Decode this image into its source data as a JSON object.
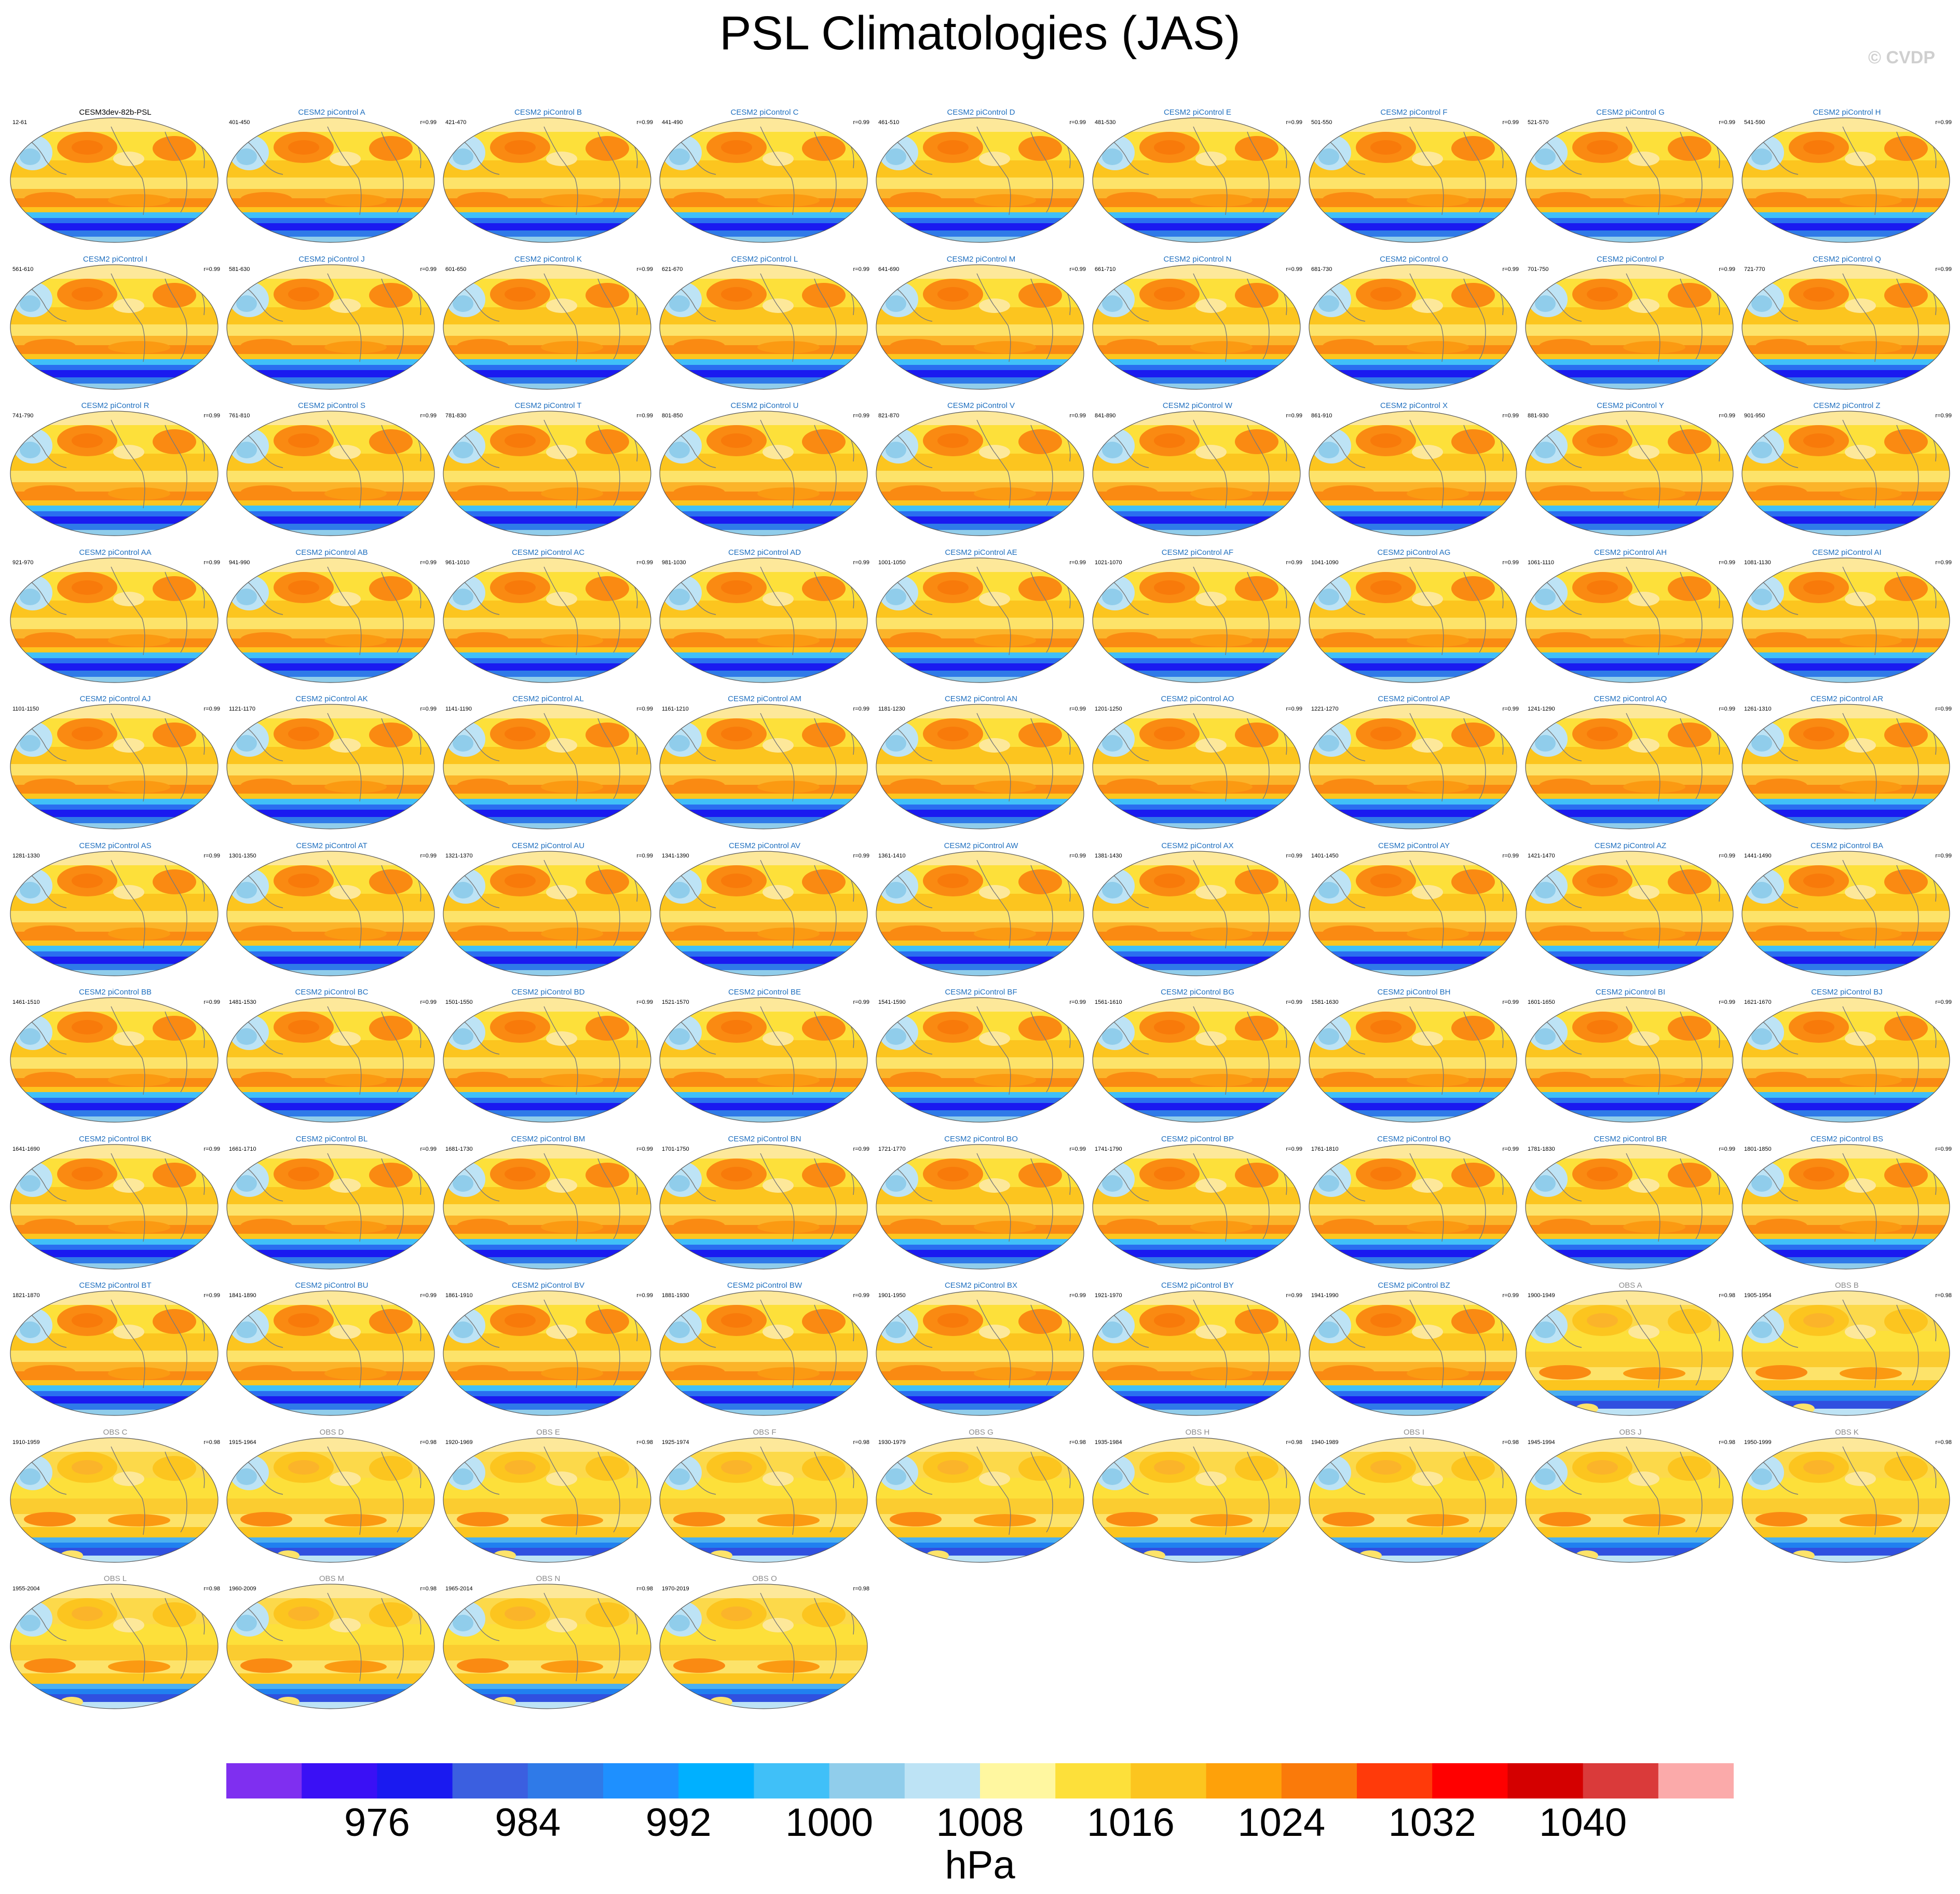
{
  "title": "PSL Climatologies (JAS)",
  "watermark": "© CVDP",
  "panels": [
    {
      "title": "CESM3dev-82b-PSL",
      "years": "12-61",
      "corr": "",
      "kind": "ref"
    },
    {
      "title": "CESM2 piControl A",
      "years": "401-450",
      "corr": "r=0.99",
      "kind": "model"
    },
    {
      "title": "CESM2 piControl B",
      "years": "421-470",
      "corr": "r=0.99",
      "kind": "model"
    },
    {
      "title": "CESM2 piControl C",
      "years": "441-490",
      "corr": "r=0.99",
      "kind": "model"
    },
    {
      "title": "CESM2 piControl D",
      "years": "461-510",
      "corr": "r=0.99",
      "kind": "model"
    },
    {
      "title": "CESM2 piControl E",
      "years": "481-530",
      "corr": "r=0.99",
      "kind": "model"
    },
    {
      "title": "CESM2 piControl F",
      "years": "501-550",
      "corr": "r=0.99",
      "kind": "model"
    },
    {
      "title": "CESM2 piControl G",
      "years": "521-570",
      "corr": "r=0.99",
      "kind": "model"
    },
    {
      "title": "CESM2 piControl H",
      "years": "541-590",
      "corr": "r=0.99",
      "kind": "model"
    },
    {
      "title": "CESM2 piControl I",
      "years": "561-610",
      "corr": "r=0.99",
      "kind": "model"
    },
    {
      "title": "CESM2 piControl J",
      "years": "581-630",
      "corr": "r=0.99",
      "kind": "model"
    },
    {
      "title": "CESM2 piControl K",
      "years": "601-650",
      "corr": "r=0.99",
      "kind": "model"
    },
    {
      "title": "CESM2 piControl L",
      "years": "621-670",
      "corr": "r=0.99",
      "kind": "model"
    },
    {
      "title": "CESM2 piControl M",
      "years": "641-690",
      "corr": "r=0.99",
      "kind": "model"
    },
    {
      "title": "CESM2 piControl N",
      "years": "661-710",
      "corr": "r=0.99",
      "kind": "model"
    },
    {
      "title": "CESM2 piControl O",
      "years": "681-730",
      "corr": "r=0.99",
      "kind": "model"
    },
    {
      "title": "CESM2 piControl P",
      "years": "701-750",
      "corr": "r=0.99",
      "kind": "model"
    },
    {
      "title": "CESM2 piControl Q",
      "years": "721-770",
      "corr": "r=0.99",
      "kind": "model"
    },
    {
      "title": "CESM2 piControl R",
      "years": "741-790",
      "corr": "r=0.99",
      "kind": "model"
    },
    {
      "title": "CESM2 piControl S",
      "years": "761-810",
      "corr": "r=0.99",
      "kind": "model"
    },
    {
      "title": "CESM2 piControl T",
      "years": "781-830",
      "corr": "r=0.99",
      "kind": "model"
    },
    {
      "title": "CESM2 piControl U",
      "years": "801-850",
      "corr": "r=0.99",
      "kind": "model"
    },
    {
      "title": "CESM2 piControl V",
      "years": "821-870",
      "corr": "r=0.99",
      "kind": "model"
    },
    {
      "title": "CESM2 piControl W",
      "years": "841-890",
      "corr": "r=0.99",
      "kind": "model"
    },
    {
      "title": "CESM2 piControl X",
      "years": "861-910",
      "corr": "r=0.99",
      "kind": "model"
    },
    {
      "title": "CESM2 piControl Y",
      "years": "881-930",
      "corr": "r=0.99",
      "kind": "model"
    },
    {
      "title": "CESM2 piControl Z",
      "years": "901-950",
      "corr": "r=0.99",
      "kind": "model"
    },
    {
      "title": "CESM2 piControl AA",
      "years": "921-970",
      "corr": "r=0.99",
      "kind": "model"
    },
    {
      "title": "CESM2 piControl AB",
      "years": "941-990",
      "corr": "r=0.99",
      "kind": "model"
    },
    {
      "title": "CESM2 piControl AC",
      "years": "961-1010",
      "corr": "r=0.99",
      "kind": "model"
    },
    {
      "title": "CESM2 piControl AD",
      "years": "981-1030",
      "corr": "r=0.99",
      "kind": "model"
    },
    {
      "title": "CESM2 piControl AE",
      "years": "1001-1050",
      "corr": "r=0.99",
      "kind": "model"
    },
    {
      "title": "CESM2 piControl AF",
      "years": "1021-1070",
      "corr": "r=0.99",
      "kind": "model"
    },
    {
      "title": "CESM2 piControl AG",
      "years": "1041-1090",
      "corr": "r=0.99",
      "kind": "model"
    },
    {
      "title": "CESM2 piControl AH",
      "years": "1061-1110",
      "corr": "r=0.99",
      "kind": "model"
    },
    {
      "title": "CESM2 piControl AI",
      "years": "1081-1130",
      "corr": "r=0.99",
      "kind": "model"
    },
    {
      "title": "CESM2 piControl AJ",
      "years": "1101-1150",
      "corr": "r=0.99",
      "kind": "model"
    },
    {
      "title": "CESM2 piControl AK",
      "years": "1121-1170",
      "corr": "r=0.99",
      "kind": "model"
    },
    {
      "title": "CESM2 piControl AL",
      "years": "1141-1190",
      "corr": "r=0.99",
      "kind": "model"
    },
    {
      "title": "CESM2 piControl AM",
      "years": "1161-1210",
      "corr": "r=0.99",
      "kind": "model"
    },
    {
      "title": "CESM2 piControl AN",
      "years": "1181-1230",
      "corr": "r=0.99",
      "kind": "model"
    },
    {
      "title": "CESM2 piControl AO",
      "years": "1201-1250",
      "corr": "r=0.99",
      "kind": "model"
    },
    {
      "title": "CESM2 piControl AP",
      "years": "1221-1270",
      "corr": "r=0.99",
      "kind": "model"
    },
    {
      "title": "CESM2 piControl AQ",
      "years": "1241-1290",
      "corr": "r=0.99",
      "kind": "model"
    },
    {
      "title": "CESM2 piControl AR",
      "years": "1261-1310",
      "corr": "r=0.99",
      "kind": "model"
    },
    {
      "title": "CESM2 piControl AS",
      "years": "1281-1330",
      "corr": "r=0.99",
      "kind": "model"
    },
    {
      "title": "CESM2 piControl AT",
      "years": "1301-1350",
      "corr": "r=0.99",
      "kind": "model"
    },
    {
      "title": "CESM2 piControl AU",
      "years": "1321-1370",
      "corr": "r=0.99",
      "kind": "model"
    },
    {
      "title": "CESM2 piControl AV",
      "years": "1341-1390",
      "corr": "r=0.99",
      "kind": "model"
    },
    {
      "title": "CESM2 piControl AW",
      "years": "1361-1410",
      "corr": "r=0.99",
      "kind": "model"
    },
    {
      "title": "CESM2 piControl AX",
      "years": "1381-1430",
      "corr": "r=0.99",
      "kind": "model"
    },
    {
      "title": "CESM2 piControl AY",
      "years": "1401-1450",
      "corr": "r=0.99",
      "kind": "model"
    },
    {
      "title": "CESM2 piControl AZ",
      "years": "1421-1470",
      "corr": "r=0.99",
      "kind": "model"
    },
    {
      "title": "CESM2 piControl BA",
      "years": "1441-1490",
      "corr": "r=0.99",
      "kind": "model"
    },
    {
      "title": "CESM2 piControl BB",
      "years": "1461-1510",
      "corr": "r=0.99",
      "kind": "model"
    },
    {
      "title": "CESM2 piControl BC",
      "years": "1481-1530",
      "corr": "r=0.99",
      "kind": "model"
    },
    {
      "title": "CESM2 piControl BD",
      "years": "1501-1550",
      "corr": "r=0.99",
      "kind": "model"
    },
    {
      "title": "CESM2 piControl BE",
      "years": "1521-1570",
      "corr": "r=0.99",
      "kind": "model"
    },
    {
      "title": "CESM2 piControl BF",
      "years": "1541-1590",
      "corr": "r=0.99",
      "kind": "model"
    },
    {
      "title": "CESM2 piControl BG",
      "years": "1561-1610",
      "corr": "r=0.99",
      "kind": "model"
    },
    {
      "title": "CESM2 piControl BH",
      "years": "1581-1630",
      "corr": "r=0.99",
      "kind": "model"
    },
    {
      "title": "CESM2 piControl BI",
      "years": "1601-1650",
      "corr": "r=0.99",
      "kind": "model"
    },
    {
      "title": "CESM2 piControl BJ",
      "years": "1621-1670",
      "corr": "r=0.99",
      "kind": "model"
    },
    {
      "title": "CESM2 piControl BK",
      "years": "1641-1690",
      "corr": "r=0.99",
      "kind": "model"
    },
    {
      "title": "CESM2 piControl BL",
      "years": "1661-1710",
      "corr": "r=0.99",
      "kind": "model"
    },
    {
      "title": "CESM2 piControl BM",
      "years": "1681-1730",
      "corr": "r=0.99",
      "kind": "model"
    },
    {
      "title": "CESM2 piControl BN",
      "years": "1701-1750",
      "corr": "r=0.99",
      "kind": "model"
    },
    {
      "title": "CESM2 piControl BO",
      "years": "1721-1770",
      "corr": "r=0.99",
      "kind": "model"
    },
    {
      "title": "CESM2 piControl BP",
      "years": "1741-1790",
      "corr": "r=0.99",
      "kind": "model"
    },
    {
      "title": "CESM2 piControl BQ",
      "years": "1761-1810",
      "corr": "r=0.99",
      "kind": "model"
    },
    {
      "title": "CESM2 piControl BR",
      "years": "1781-1830",
      "corr": "r=0.99",
      "kind": "model"
    },
    {
      "title": "CESM2 piControl BS",
      "years": "1801-1850",
      "corr": "r=0.99",
      "kind": "model"
    },
    {
      "title": "CESM2 piControl BT",
      "years": "1821-1870",
      "corr": "r=0.99",
      "kind": "model"
    },
    {
      "title": "CESM2 piControl BU",
      "years": "1841-1890",
      "corr": "r=0.99",
      "kind": "model"
    },
    {
      "title": "CESM2 piControl BV",
      "years": "1861-1910",
      "corr": "r=0.99",
      "kind": "model"
    },
    {
      "title": "CESM2 piControl BW",
      "years": "1881-1930",
      "corr": "r=0.99",
      "kind": "model"
    },
    {
      "title": "CESM2 piControl BX",
      "years": "1901-1950",
      "corr": "r=0.99",
      "kind": "model"
    },
    {
      "title": "CESM2 piControl BY",
      "years": "1921-1970",
      "corr": "r=0.99",
      "kind": "model"
    },
    {
      "title": "CESM2 piControl BZ",
      "years": "1941-1990",
      "corr": "r=0.99",
      "kind": "model"
    },
    {
      "title": "OBS A",
      "years": "1900-1949",
      "corr": "r=0.98",
      "kind": "obs"
    },
    {
      "title": "OBS B",
      "years": "1905-1954",
      "corr": "r=0.98",
      "kind": "obs"
    },
    {
      "title": "OBS C",
      "years": "1910-1959",
      "corr": "r=0.98",
      "kind": "obs"
    },
    {
      "title": "OBS D",
      "years": "1915-1964",
      "corr": "r=0.98",
      "kind": "obs"
    },
    {
      "title": "OBS E",
      "years": "1920-1969",
      "corr": "r=0.98",
      "kind": "obs"
    },
    {
      "title": "OBS F",
      "years": "1925-1974",
      "corr": "r=0.98",
      "kind": "obs"
    },
    {
      "title": "OBS G",
      "years": "1930-1979",
      "corr": "r=0.98",
      "kind": "obs"
    },
    {
      "title": "OBS H",
      "years": "1935-1984",
      "corr": "r=0.98",
      "kind": "obs"
    },
    {
      "title": "OBS I",
      "years": "1940-1989",
      "corr": "r=0.98",
      "kind": "obs"
    },
    {
      "title": "OBS J",
      "years": "1945-1994",
      "corr": "r=0.98",
      "kind": "obs"
    },
    {
      "title": "OBS K",
      "years": "1950-1999",
      "corr": "r=0.98",
      "kind": "obs"
    },
    {
      "title": "OBS L",
      "years": "1955-2004",
      "corr": "r=0.98",
      "kind": "obs"
    },
    {
      "title": "OBS M",
      "years": "1960-2009",
      "corr": "r=0.98",
      "kind": "obs"
    },
    {
      "title": "OBS N",
      "years": "1965-2014",
      "corr": "r=0.98",
      "kind": "obs"
    },
    {
      "title": "OBS O",
      "years": "1970-2019",
      "corr": "r=0.98",
      "kind": "obs"
    }
  ],
  "title_colors": {
    "ref": "#000000",
    "model": "#1f6fbf",
    "obs": "#8c8c8c"
  },
  "colorbar": {
    "colors": [
      "#7f2ff0",
      "#3a10f5",
      "#1a1af0",
      "#3b5fe0",
      "#2f7ae8",
      "#1e90ff",
      "#00b0ff",
      "#40c0f8",
      "#90cdeb",
      "#bde3f5",
      "#fff7a0",
      "#fde03a",
      "#fcc51f",
      "#fea10a",
      "#fa7a0a",
      "#ff3a0a",
      "#ff0000",
      "#d40000",
      "#da3a3a",
      "#fbaaaa"
    ],
    "tick_labels": [
      "976",
      "984",
      "992",
      "1000",
      "1008",
      "1016",
      "1024",
      "1032",
      "1040"
    ],
    "units": "hPa"
  }
}
